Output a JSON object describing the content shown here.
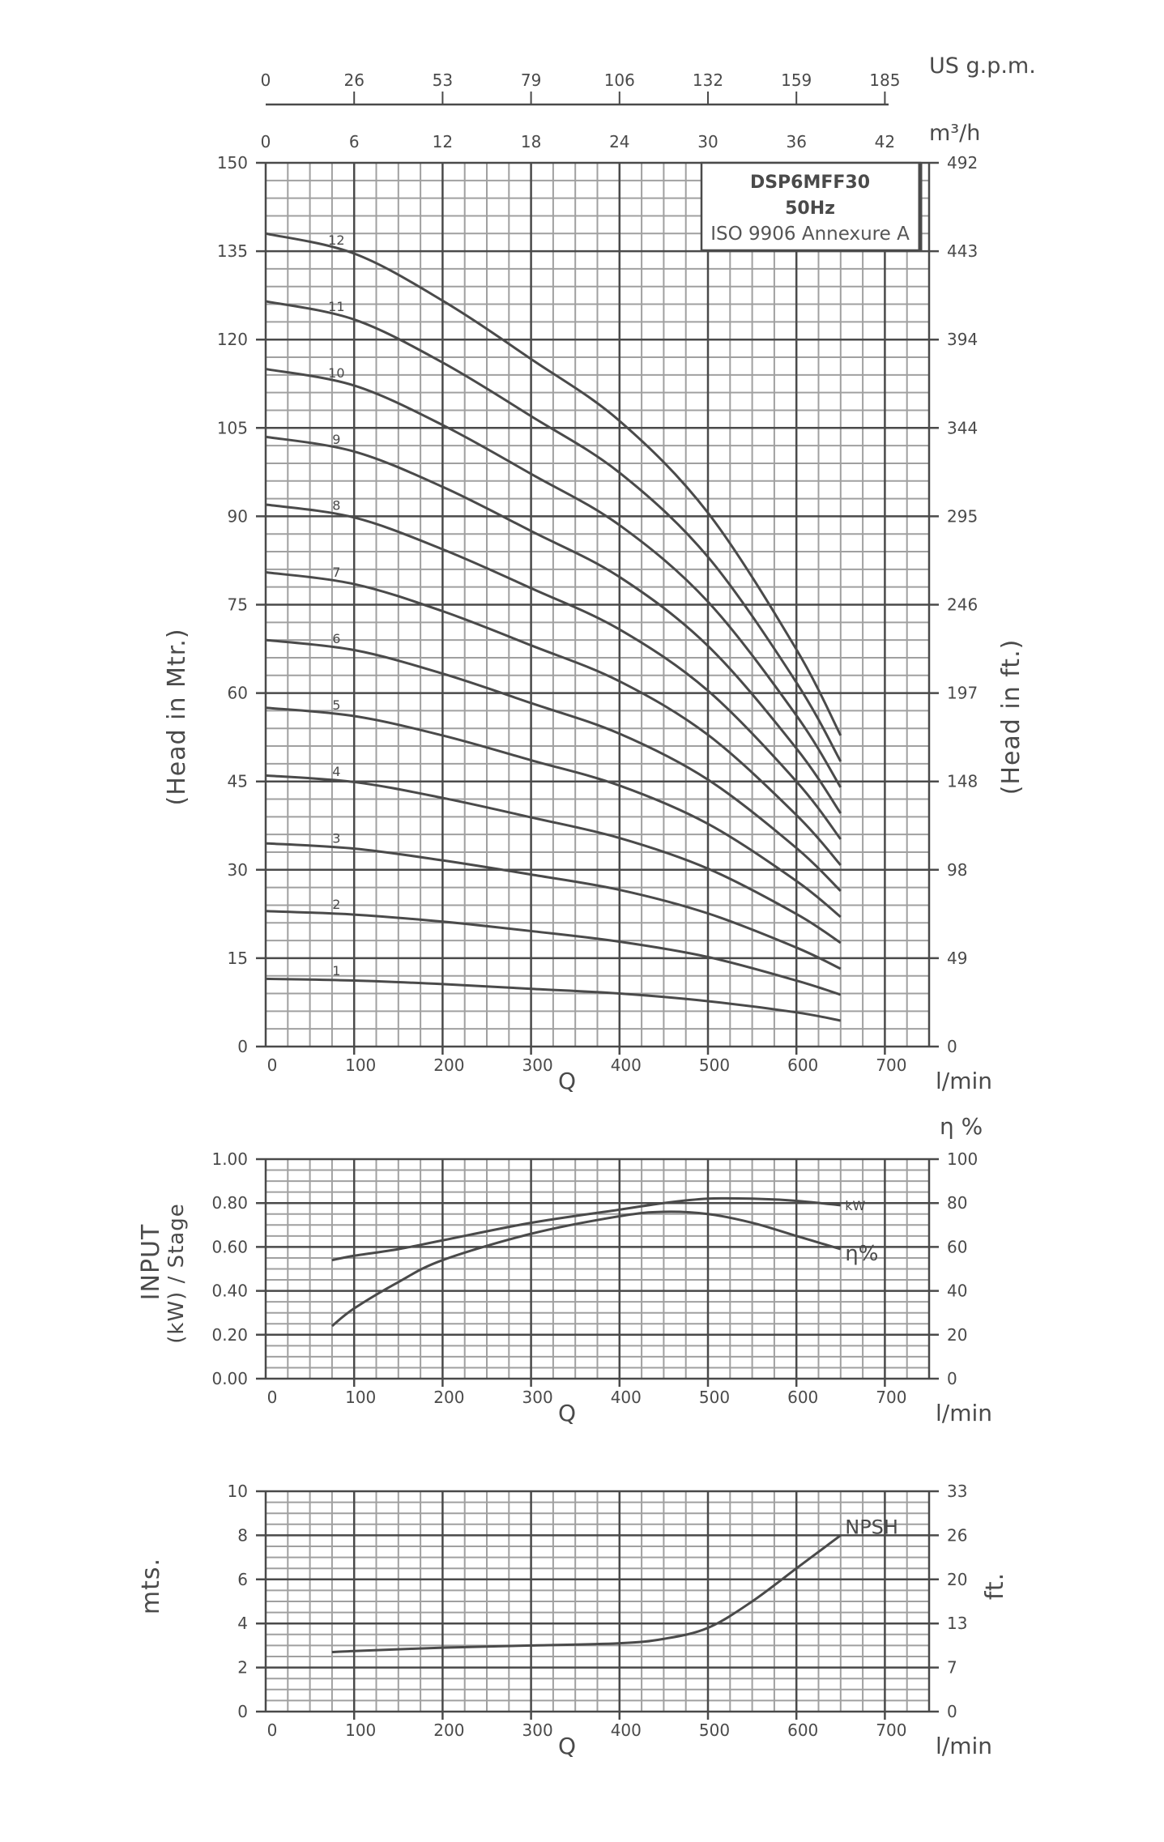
{
  "model_box": {
    "model": "DSP6MFF30",
    "frequency": "50Hz",
    "standard": "ISO 9906 Annexure A"
  },
  "axes": {
    "us_gpm": {
      "label": "US g.p.m.",
      "ticks": [
        "0",
        "26",
        "53",
        "79",
        "106",
        "132",
        "159",
        "185"
      ]
    },
    "m3h": {
      "label": "m³/h",
      "ticks": [
        "0",
        "6",
        "12",
        "18",
        "24",
        "30",
        "36",
        "42"
      ]
    },
    "q_ticks": [
      "0",
      "100",
      "200",
      "300",
      "400",
      "500",
      "600",
      "700"
    ],
    "q_label": "Q",
    "q_unit": "l/min"
  },
  "chart_data": [
    {
      "type": "line",
      "title": "Head vs Flow (per number of stages)",
      "xlabel": "Q (l/min)",
      "ylabel": "(Head in Mtr.)",
      "ylabel_right": "(Head in ft.)",
      "xlim": [
        0,
        750
      ],
      "ylim": [
        0,
        150
      ],
      "y_ticks": [
        "0",
        "15",
        "30",
        "45",
        "60",
        "75",
        "90",
        "105",
        "120",
        "135",
        "150"
      ],
      "y_right_ticks": [
        "0",
        "49",
        "98",
        "148",
        "197",
        "246",
        "295",
        "344",
        "394",
        "443",
        "492"
      ],
      "grid": true,
      "x": [
        0,
        100,
        200,
        300,
        400,
        500,
        600,
        650
      ],
      "series": [
        {
          "name": "1",
          "values": [
            11.5,
            11.2,
            10.6,
            9.8,
            9.0,
            7.7,
            5.8,
            4.4
          ]
        },
        {
          "name": "2",
          "values": [
            23.0,
            22.4,
            21.2,
            19.6,
            17.8,
            15.2,
            11.2,
            8.8
          ]
        },
        {
          "name": "3",
          "values": [
            34.5,
            33.6,
            31.6,
            29.2,
            26.6,
            22.6,
            16.8,
            13.2
          ]
        },
        {
          "name": "4",
          "values": [
            46.0,
            44.9,
            42.2,
            38.9,
            35.4,
            30.2,
            22.5,
            17.6
          ]
        },
        {
          "name": "5",
          "values": [
            57.5,
            56.1,
            52.8,
            48.6,
            44.3,
            37.8,
            28.1,
            22.0
          ]
        },
        {
          "name": "6",
          "values": [
            69.0,
            67.3,
            63.3,
            58.3,
            53.1,
            45.3,
            33.7,
            26.4
          ]
        },
        {
          "name": "7",
          "values": [
            80.5,
            78.5,
            73.9,
            68.1,
            62.0,
            52.9,
            39.3,
            30.8
          ]
        },
        {
          "name": "8",
          "values": [
            92.0,
            89.8,
            84.4,
            77.8,
            70.8,
            60.4,
            45.0,
            35.2
          ]
        },
        {
          "name": "9",
          "values": [
            103.5,
            101.0,
            95.0,
            87.5,
            79.7,
            68.0,
            50.6,
            39.6
          ]
        },
        {
          "name": "10",
          "values": [
            115.0,
            112.2,
            105.5,
            97.2,
            88.5,
            75.5,
            56.2,
            44.0
          ]
        },
        {
          "name": "11",
          "values": [
            126.5,
            123.4,
            116.1,
            107.0,
            97.4,
            83.1,
            61.8,
            48.4
          ]
        },
        {
          "name": "12",
          "values": [
            138.0,
            134.6,
            126.6,
            116.7,
            106.2,
            90.6,
            67.4,
            52.8
          ]
        }
      ]
    },
    {
      "type": "line",
      "title": "Input power per stage and efficiency",
      "xlabel": "Q (l/min)",
      "ylabel": "INPUT (kW) / Stage",
      "ylabel_right": "η %",
      "xlim": [
        0,
        750
      ],
      "ylim": [
        0,
        1.0
      ],
      "y_ticks": [
        "0.00",
        "0.20",
        "0.40",
        "0.60",
        "0.80",
        "1.00"
      ],
      "y_right_ticks": [
        "0",
        "20",
        "40",
        "60",
        "80",
        "100"
      ],
      "grid": true,
      "x": [
        75,
        100,
        150,
        200,
        300,
        400,
        450,
        500,
        550,
        600,
        650
      ],
      "series": [
        {
          "name": "kW",
          "axis": "left",
          "values": [
            0.54,
            0.56,
            0.59,
            0.63,
            0.71,
            0.77,
            0.8,
            0.82,
            0.82,
            0.81,
            0.79
          ]
        },
        {
          "name": "η%",
          "axis": "right",
          "values": [
            24,
            32,
            44,
            54,
            66,
            74,
            76,
            75,
            71,
            65,
            59
          ]
        }
      ]
    },
    {
      "type": "line",
      "title": "NPSH",
      "xlabel": "Q (l/min)",
      "ylabel": "mts.",
      "ylabel_right": "ft.",
      "xlim": [
        0,
        750
      ],
      "ylim": [
        0,
        10
      ],
      "y_ticks": [
        "0",
        "2",
        "4",
        "6",
        "8",
        "10"
      ],
      "y_right_ticks": [
        "0",
        "7",
        "13",
        "20",
        "26",
        "33"
      ],
      "grid": true,
      "x": [
        75,
        100,
        200,
        300,
        400,
        450,
        500,
        550,
        600,
        650
      ],
      "series": [
        {
          "name": "NPSH",
          "values": [
            2.7,
            2.75,
            2.9,
            3.0,
            3.1,
            3.3,
            3.8,
            5.0,
            6.5,
            8.0
          ]
        }
      ]
    }
  ],
  "labels": {
    "head_m": "(Head in Mtr.)",
    "head_ft": "(Head in ft.)",
    "input_line1": "INPUT",
    "input_line2": "(kW) / Stage",
    "eta_unit": "η %",
    "kw_curve": "kW",
    "eta_curve": "η%",
    "npsh_curve": "NPSH",
    "mts": "mts.",
    "ft": "ft."
  },
  "style": {
    "line_color": "#4a4a4a",
    "major_grid": "#4a4a4a",
    "minor_grid": "#a0a0a0"
  }
}
